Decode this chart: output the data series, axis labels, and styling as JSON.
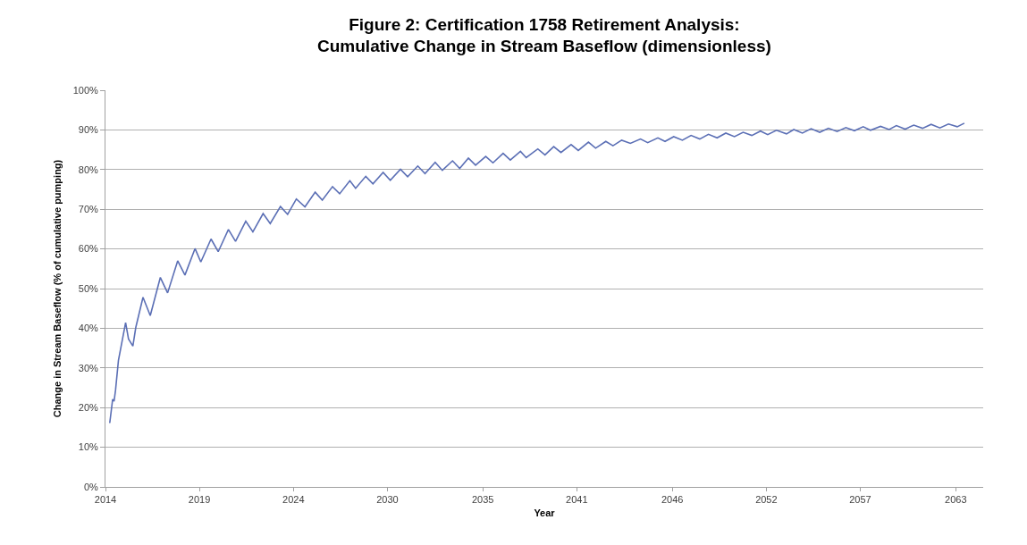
{
  "chart_data": {
    "type": "line",
    "title": "Figure 2: Certification 1758 Retirement Analysis:\nCumulative Change in Stream Baseflow (dimensionless)",
    "xlabel": "Year",
    "ylabel": "Change in Stream Baseflow (% of cumulative pumping)",
    "xlim": [
      "2014-01",
      "2064-08"
    ],
    "xticks": [
      {
        "value": "2014-01",
        "label": "2014"
      },
      {
        "value": "2019-06",
        "label": "2019"
      },
      {
        "value": "2024-11",
        "label": "2024"
      },
      {
        "value": "2030-04",
        "label": "2030"
      },
      {
        "value": "2035-10",
        "label": "2035"
      },
      {
        "value": "2041-03",
        "label": "2041"
      },
      {
        "value": "2046-09",
        "label": "2046"
      },
      {
        "value": "2052-02",
        "label": "2052"
      },
      {
        "value": "2057-07",
        "label": "2057"
      },
      {
        "value": "2063-01",
        "label": "2063"
      }
    ],
    "ylim": [
      0,
      100
    ],
    "yticks": [
      {
        "value": 0,
        "label": "0%"
      },
      {
        "value": 10,
        "label": "10%"
      },
      {
        "value": 20,
        "label": "20%"
      },
      {
        "value": 30,
        "label": "30%"
      },
      {
        "value": 40,
        "label": "40%"
      },
      {
        "value": 50,
        "label": "50%"
      },
      {
        "value": 60,
        "label": "60%"
      },
      {
        "value": 70,
        "label": "70%"
      },
      {
        "value": 80,
        "label": "80%"
      },
      {
        "value": 90,
        "label": "90%"
      },
      {
        "value": 100,
        "label": "100%"
      }
    ],
    "grid": "y",
    "marker": "none",
    "line_style": "solid",
    "series": [
      {
        "color": "#5b6fb5",
        "x": [
          "2014-04",
          "2014-06",
          "2014-07",
          "2014-08",
          "2014-10",
          "2015-03",
          "2015-05",
          "2015-08",
          "2015-10",
          "2016-03",
          "2016-08",
          "2017-03",
          "2017-08",
          "2018-03",
          "2018-08",
          "2019-03",
          "2019-07",
          "2020-02",
          "2020-07",
          "2021-02",
          "2021-07",
          "2022-02",
          "2022-07",
          "2023-02",
          "2023-07",
          "2024-02",
          "2024-07",
          "2025-01",
          "2025-07",
          "2026-02",
          "2026-07",
          "2027-02",
          "2027-07",
          "2028-02",
          "2028-06",
          "2029-01",
          "2029-06",
          "2030-01",
          "2030-06",
          "2031-01",
          "2031-06",
          "2032-01",
          "2032-06",
          "2033-01",
          "2033-06",
          "2034-01",
          "2034-06",
          "2034-12",
          "2035-05",
          "2035-12",
          "2036-05",
          "2036-12",
          "2037-05",
          "2037-12",
          "2038-04",
          "2038-12",
          "2039-05",
          "2039-11",
          "2040-04",
          "2040-11",
          "2041-04",
          "2041-11",
          "2042-04",
          "2042-11",
          "2043-04",
          "2043-10",
          "2044-04",
          "2044-11",
          "2045-04",
          "2045-11",
          "2046-04",
          "2046-10",
          "2047-04",
          "2047-10",
          "2048-04",
          "2048-10",
          "2049-04",
          "2049-10",
          "2050-04",
          "2050-10",
          "2051-04",
          "2051-10",
          "2052-03",
          "2052-09",
          "2053-04",
          "2053-09",
          "2054-03",
          "2054-09",
          "2055-03",
          "2055-09",
          "2056-03",
          "2056-09",
          "2057-03",
          "2057-09",
          "2058-02",
          "2058-09",
          "2059-03",
          "2059-08",
          "2060-02",
          "2060-08",
          "2061-02",
          "2061-08",
          "2062-02",
          "2062-08",
          "2063-02",
          "2063-07"
        ],
        "values": [
          16.1,
          22.1,
          21.6,
          24.4,
          31.9,
          41.4,
          37.3,
          35.5,
          40.2,
          47.8,
          43.2,
          52.8,
          48.9,
          57.0,
          53.4,
          60.1,
          56.7,
          62.5,
          59.3,
          64.9,
          61.9,
          67.0,
          64.3,
          68.9,
          66.4,
          70.7,
          68.7,
          72.6,
          70.6,
          74.3,
          72.3,
          75.7,
          73.9,
          77.2,
          75.3,
          78.3,
          76.4,
          79.3,
          77.3,
          80.1,
          78.2,
          80.9,
          79.0,
          81.8,
          79.8,
          82.2,
          80.3,
          82.9,
          81.1,
          83.3,
          81.7,
          84.1,
          82.4,
          84.6,
          83.0,
          85.2,
          83.7,
          85.8,
          84.3,
          86.3,
          84.8,
          86.9,
          85.4,
          87.1,
          86.0,
          87.4,
          86.6,
          87.7,
          86.8,
          88.0,
          87.1,
          88.3,
          87.4,
          88.6,
          87.7,
          88.9,
          88.0,
          89.2,
          88.3,
          89.4,
          88.6,
          89.7,
          88.8,
          89.9,
          89.0,
          90.1,
          89.2,
          90.3,
          89.4,
          90.4,
          89.6,
          90.6,
          89.8,
          90.8,
          89.9,
          90.9,
          90.1,
          91.1,
          90.2,
          91.2,
          90.4,
          91.4,
          90.5,
          91.5,
          90.8,
          91.7
        ]
      }
    ]
  }
}
